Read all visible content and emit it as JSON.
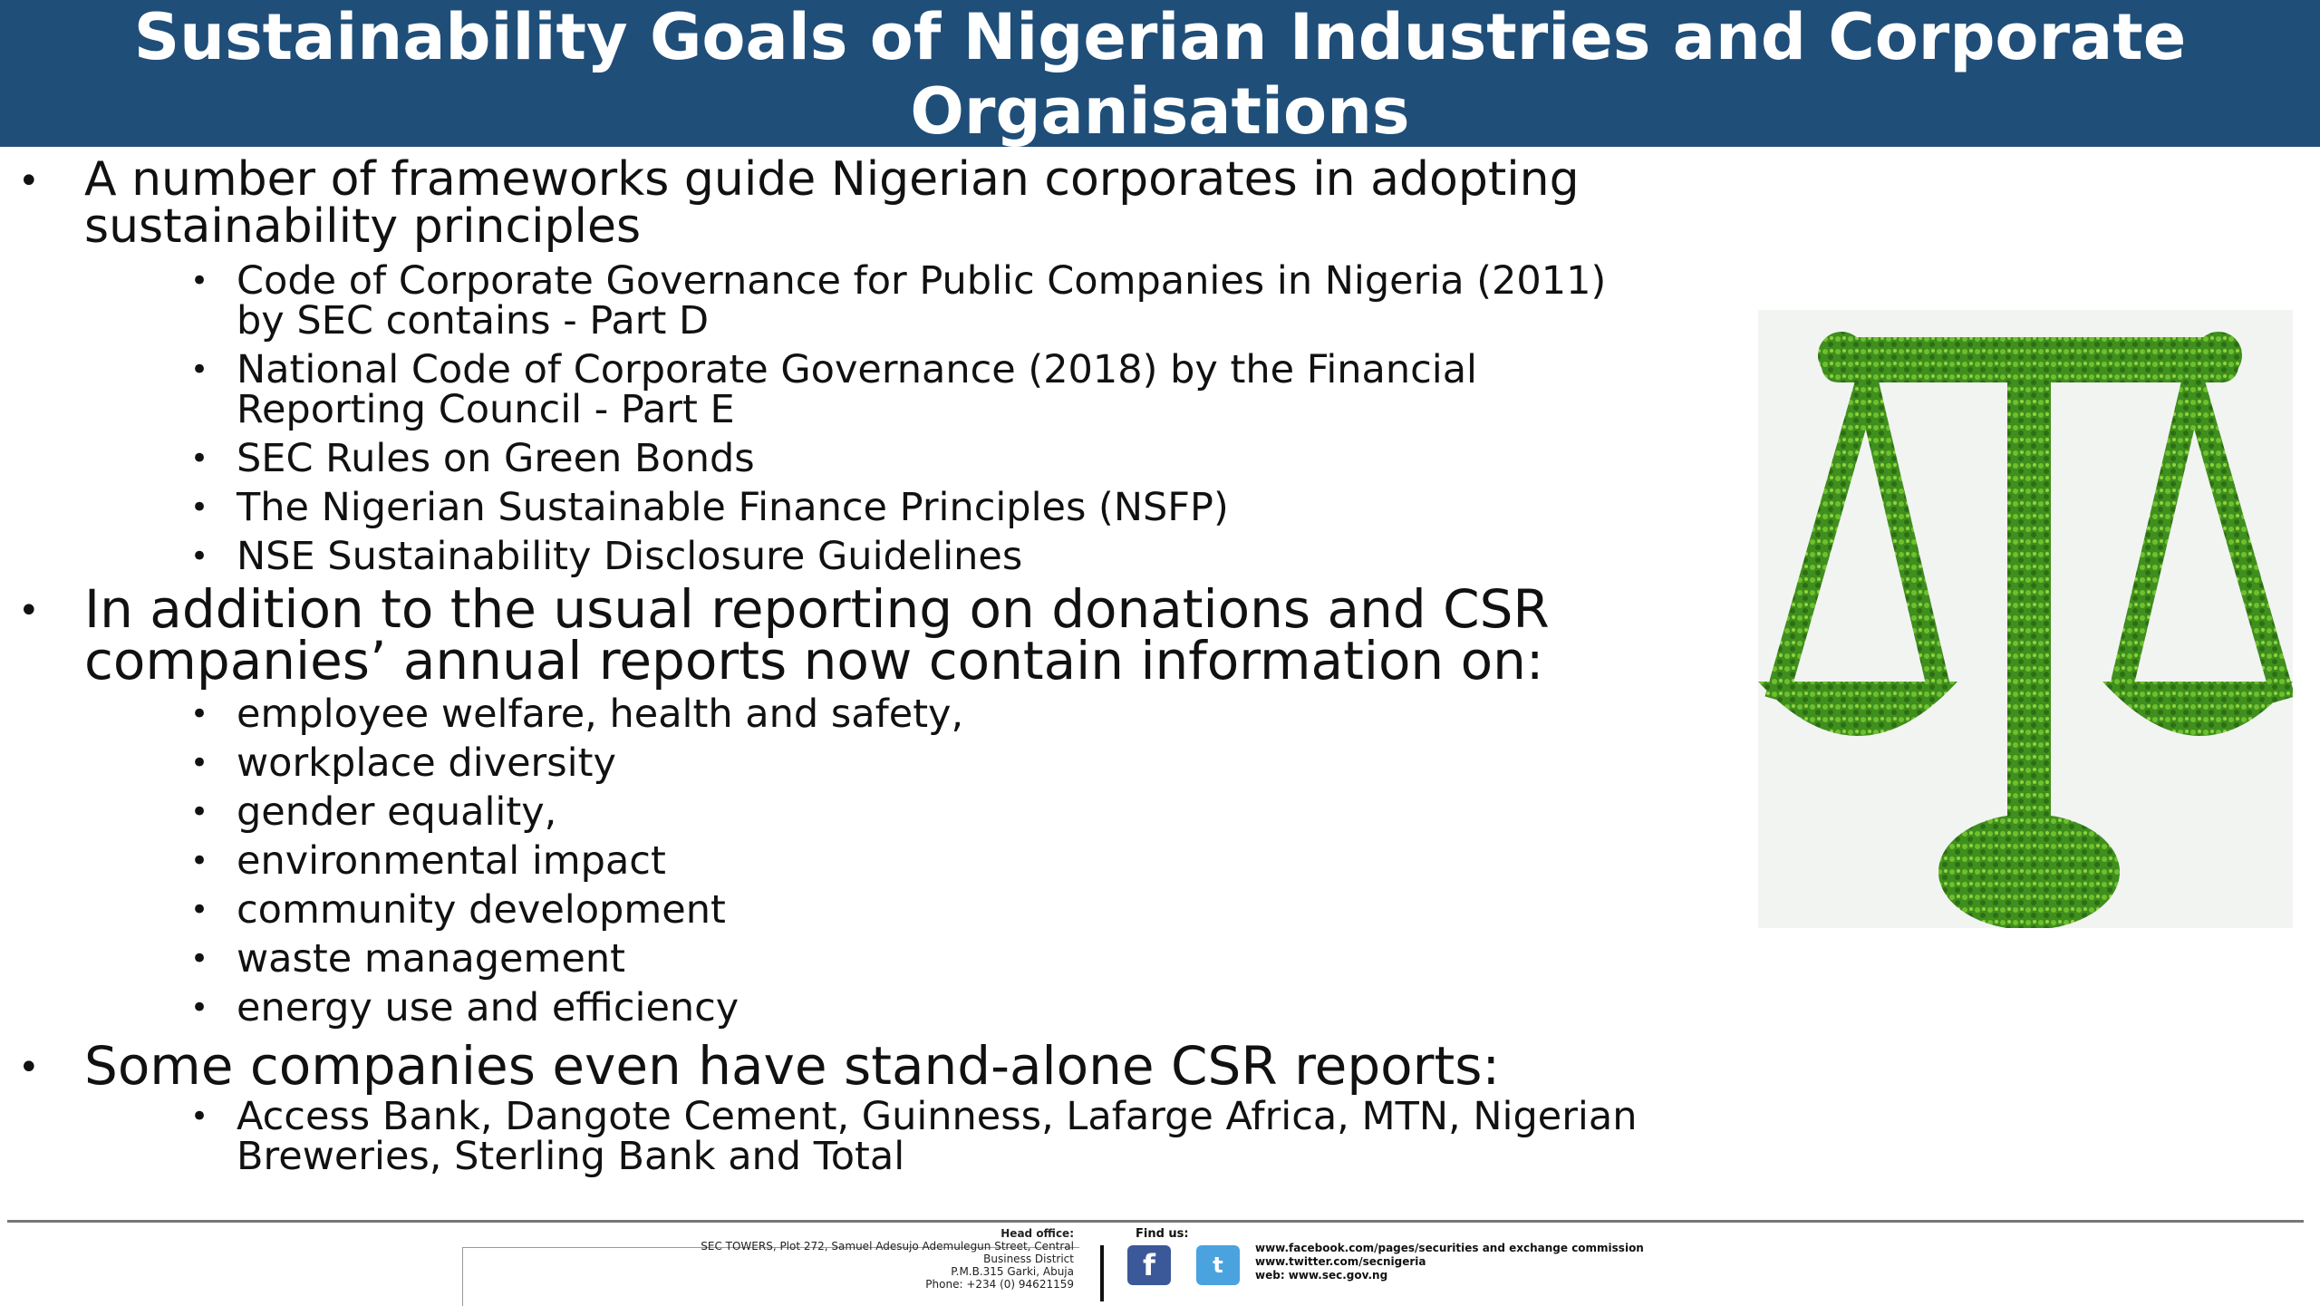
{
  "title": {
    "line1": "Sustainability Goals of Nigerian Industries and Corporate",
    "line2": "Organisations"
  },
  "section1": {
    "heading_line1": "A number of frameworks guide Nigerian corporates in adopting",
    "heading_line2": "sustainability principles",
    "items": [
      {
        "line1": "Code of Corporate Governance for Public Companies in Nigeria (2011)",
        "line2": "by SEC contains - Part D"
      },
      {
        "line1": "National Code of Corporate Governance (2018) by the Financial",
        "line2": "Reporting Council - Part E"
      },
      {
        "line1": "SEC Rules on Green Bonds"
      },
      {
        "line1": "The Nigerian Sustainable Finance Principles (NSFP)"
      },
      {
        "line1": "NSE Sustainability Disclosure Guidelines"
      }
    ]
  },
  "section2": {
    "heading_line1": "In addition to the usual reporting on donations and CSR",
    "heading_line2": "companies’ annual reports now contain information on:",
    "items": [
      "employee welfare, health and safety,",
      "workplace diversity",
      "gender equality,",
      "environmental impact",
      "community development",
      "waste management",
      "energy use and efficiency"
    ]
  },
  "section3": {
    "heading": "Some companies even have stand-alone CSR reports:",
    "item_line1": "Access Bank, Dangote Cement, Guinness, Lafarge Africa, MTN, Nigerian",
    "item_line2": "Breweries, Sterling Bank and Total"
  },
  "bullet": "•",
  "footer": {
    "head_office_label": "Head office:",
    "address_line1": "SEC TOWERS, Plot 272, Samuel Adesujo Ademulegun Street, Central",
    "address_line2": "Business District",
    "address_line3": "P.M.B.315 Garki, Abuja",
    "address_line4": "Phone: +234 (0) 94621159",
    "find_us_label": "Find us:",
    "facebook_link": "www.facebook.com/pages/securities and exchange commission",
    "twitter_link": "www.twitter.com/secnigeria",
    "web_link": "web: www.sec.gov.ng"
  },
  "colors": {
    "title_bar": "#1f4e79",
    "leaf_green": "#3f8f1e"
  },
  "image": {
    "icon": "scales-of-justice-leaf-icon"
  }
}
